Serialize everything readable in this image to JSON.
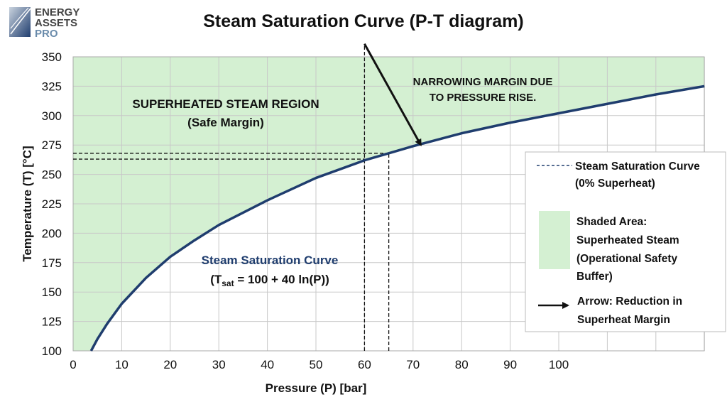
{
  "logo": {
    "line1": "ENERGY",
    "line2": "ASSETS",
    "line3": "PRO"
  },
  "chart_data": {
    "type": "line",
    "title": "Steam Saturation Curve (P-T diagram)",
    "xlabel": "Pressure (P) [bar]",
    "ylabel": "Temperature (T) [°C]",
    "xlim": [
      0,
      130
    ],
    "ylim": [
      100,
      350
    ],
    "xticks": [
      0,
      10,
      20,
      30,
      40,
      50,
      60,
      70,
      80,
      90,
      100
    ],
    "yticks": [
      100,
      125,
      150,
      175,
      200,
      225,
      250,
      275,
      300,
      325,
      350
    ],
    "grid": true,
    "series": [
      {
        "name": "Steam Saturation Curve (0% Superheat)",
        "x": [
          3.7,
          5,
          7,
          10,
          15,
          20,
          25,
          30,
          40,
          50,
          60,
          65,
          70,
          80,
          90,
          100,
          110,
          120,
          130
        ],
        "y": [
          100,
          110,
          123,
          140,
          162,
          180,
          194,
          207,
          228,
          247,
          262,
          268,
          274,
          285,
          294,
          302,
          310,
          318,
          325
        ]
      }
    ],
    "colors": {
      "curve": "#1f3d6e",
      "shade": "#d4f0d2",
      "grid": "#c8c8c8"
    },
    "reference_lines": {
      "vertical_x": [
        60,
        65
      ],
      "horizontal_y": [
        263,
        268
      ]
    },
    "arrow": {
      "from": [
        60,
        361
      ],
      "to": [
        71.6,
        275
      ]
    },
    "annotations": {
      "region_title": "SUPERHEATED STEAM REGION",
      "region_sub": "(Safe Margin)",
      "margin_line1": "NARROWING MARGIN DUE",
      "margin_line2": "TO PRESSURE RISE.",
      "curve_label": "Steam Saturation Curve",
      "formula_pre": "(T",
      "formula_sub": "sat",
      "formula_post": " = 100 + 40 ln(P))"
    },
    "legend": {
      "placement": "right",
      "items": [
        {
          "line1": "Steam Saturation Curve",
          "line2": "(0% Superheat)"
        },
        {
          "line1": "Shaded Area:",
          "line2": "Superheated Steam",
          "line3": "(Operational Safety",
          "line4": "Buffer)"
        },
        {
          "line1": "Arrow: Reduction in",
          "line2": "Superheat Margin"
        }
      ]
    }
  }
}
